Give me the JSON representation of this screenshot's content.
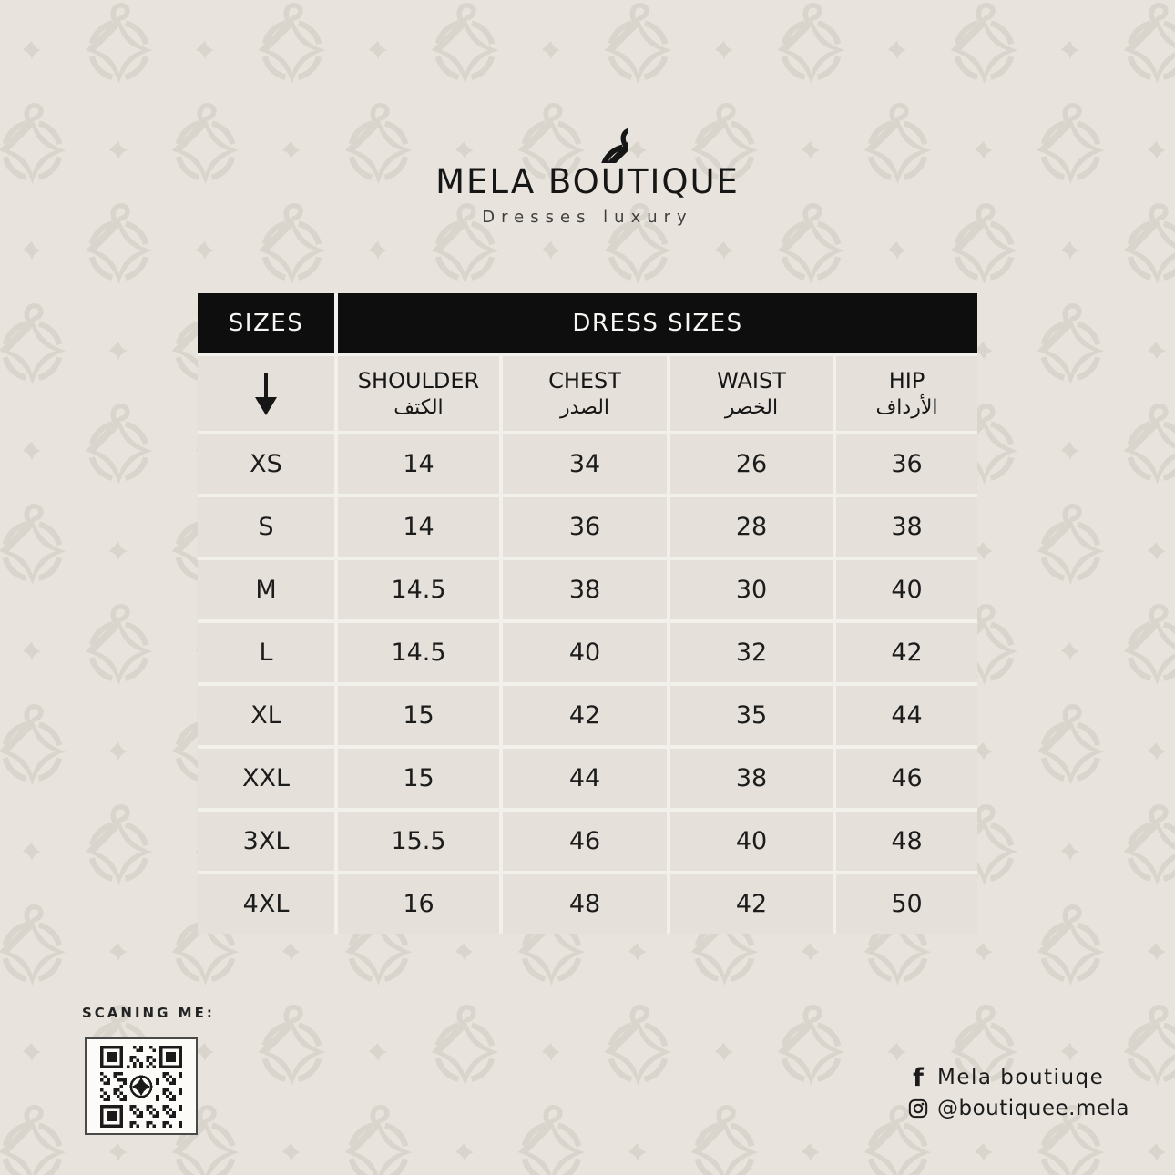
{
  "brand": {
    "name": "MELA BOUTIQUE",
    "tagline": "Dresses luxury",
    "logo": "diamond-hanger-logo"
  },
  "size_chart": {
    "corner_header": "SIZES",
    "group_header": "DRESS SIZES",
    "arrow_icon": "down-arrow",
    "columns": [
      {
        "en": "SHOULDER",
        "ar": "الكتف"
      },
      {
        "en": "CHEST",
        "ar": "الصدر"
      },
      {
        "en": "WAIST",
        "ar": "الخصر"
      },
      {
        "en": "HIP",
        "ar": "الأرداف"
      }
    ],
    "rows": [
      {
        "size": "XS",
        "values": [
          "14",
          "34",
          "26",
          "36"
        ]
      },
      {
        "size": "S",
        "values": [
          "14",
          "36",
          "28",
          "38"
        ]
      },
      {
        "size": "M",
        "values": [
          "14.5",
          "38",
          "30",
          "40"
        ]
      },
      {
        "size": "L",
        "values": [
          "14.5",
          "40",
          "32",
          "42"
        ]
      },
      {
        "size": "XL",
        "values": [
          "15",
          "42",
          "35",
          "44"
        ]
      },
      {
        "size": "XXL",
        "values": [
          "15",
          "44",
          "38",
          "46"
        ]
      },
      {
        "size": "3XL",
        "values": [
          "15.5",
          "46",
          "40",
          "48"
        ]
      },
      {
        "size": "4XL",
        "values": [
          "16",
          "48",
          "42",
          "50"
        ]
      }
    ]
  },
  "footer": {
    "scan_label": "SCANING ME:",
    "qr_icon": "qr-code",
    "facebook_handle": "Mela boutiuqe",
    "instagram_handle": "@boutiquee.mela"
  },
  "colors": {
    "background": "#e8e4dd",
    "watermark": "#d9d5cc",
    "table_cell": "#e5e1da",
    "grid_line": "#f2f0eb",
    "header_bg": "#0e0e0e",
    "header_text": "#f7f6f3",
    "text": "#1c1c1c"
  }
}
